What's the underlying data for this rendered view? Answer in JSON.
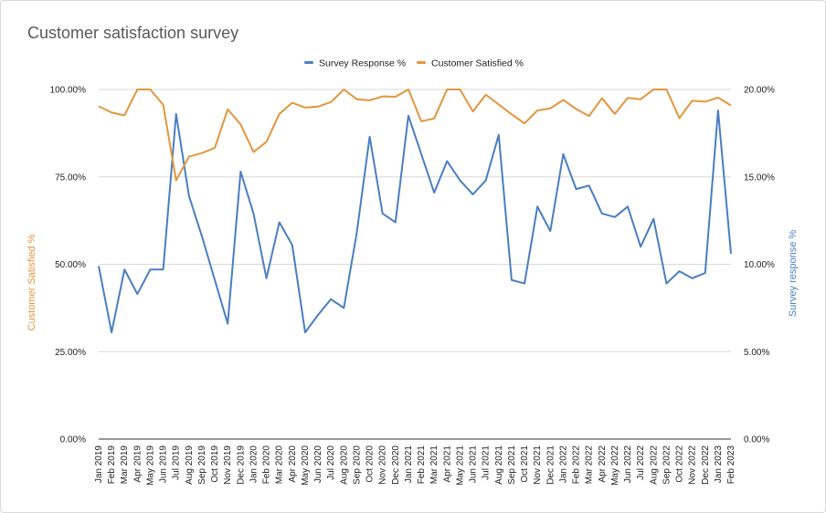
{
  "chart_data": {
    "type": "line",
    "title": "Customer satisfaction survey",
    "x": [
      "Jan 2019",
      "Feb 2019",
      "Mar 2019",
      "Apr 2019",
      "May 2019",
      "Jun 2019",
      "Jul 2019",
      "Aug 2019",
      "Sep 2019",
      "Oct 2019",
      "Nov 2019",
      "Dec 2019",
      "Jan 2020",
      "Feb 2020",
      "Mar 2020",
      "Apr 2020",
      "May 2020",
      "Jun 2020",
      "Jul 2020",
      "Aug 2020",
      "Sep 2020",
      "Oct 2020",
      "Nov 2020",
      "Dec 2020",
      "Jan 2021",
      "Feb 2021",
      "Mar 2021",
      "Apr 2021",
      "May 2021",
      "Jun 2021",
      "Jul 2021",
      "Aug 2021",
      "Sep 2021",
      "Oct 2021",
      "Nov 2021",
      "Dec 2021",
      "Jan 2022",
      "Feb 2022",
      "Mar 2022",
      "Apr 2022",
      "May 2022",
      "Jun 2022",
      "Jul 2022",
      "Aug 2022",
      "Sep 2022",
      "Oct 2022",
      "Nov 2022",
      "Dec 2022",
      "Jan 2023",
      "Feb 2023"
    ],
    "series": [
      {
        "name": "Survey Response %",
        "axis": "right",
        "color": "#4a7ec2",
        "values": [
          9.9,
          6.1,
          9.7,
          8.3,
          9.7,
          9.7,
          18.6,
          13.9,
          11.6,
          9.1,
          6.6,
          15.3,
          12.9,
          9.2,
          12.4,
          11.1,
          6.1,
          7.1,
          8.0,
          7.5,
          11.8,
          17.3,
          12.9,
          12.4,
          18.5,
          16.3,
          14.1,
          15.9,
          14.8,
          14.0,
          14.8,
          17.4,
          9.1,
          8.9,
          13.3,
          11.9,
          16.3,
          14.3,
          14.5,
          12.9,
          12.7,
          13.3,
          11.0,
          12.6,
          8.9,
          9.6,
          9.2,
          9.5,
          18.8,
          10.6
        ]
      },
      {
        "name": "Customer Satisfied %",
        "axis": "left",
        "color": "#e3963d",
        "values": [
          95.2,
          93.4,
          92.6,
          100.0,
          100.0,
          95.6,
          74.0,
          80.8,
          81.8,
          83.3,
          94.3,
          90.0,
          82.1,
          85.0,
          93.0,
          96.2,
          94.8,
          95.1,
          96.4,
          100.0,
          97.2,
          96.9,
          98.0,
          97.9,
          100.0,
          90.9,
          91.7,
          100.0,
          100.0,
          93.7,
          98.5,
          95.7,
          92.9,
          90.3,
          94.0,
          94.6,
          97.0,
          94.4,
          92.4,
          97.5,
          93.0,
          97.6,
          97.2,
          100.0,
          100.0,
          91.8,
          96.8,
          96.5,
          97.7,
          95.4
        ]
      }
    ],
    "ylabel_left": "Customer Satisfied %",
    "ylabel_right": "Survey response %",
    "ylim_left": [
      0,
      100
    ],
    "ylim_right": [
      0,
      20
    ],
    "yticks_left": [
      "0.00%",
      "25.00%",
      "50.00%",
      "75.00%",
      "100.00%"
    ],
    "yticks_right": [
      "0.00%",
      "5.00%",
      "10.00%",
      "15.00%",
      "20.00%"
    ],
    "legend_position": "top-center",
    "grid": true
  }
}
